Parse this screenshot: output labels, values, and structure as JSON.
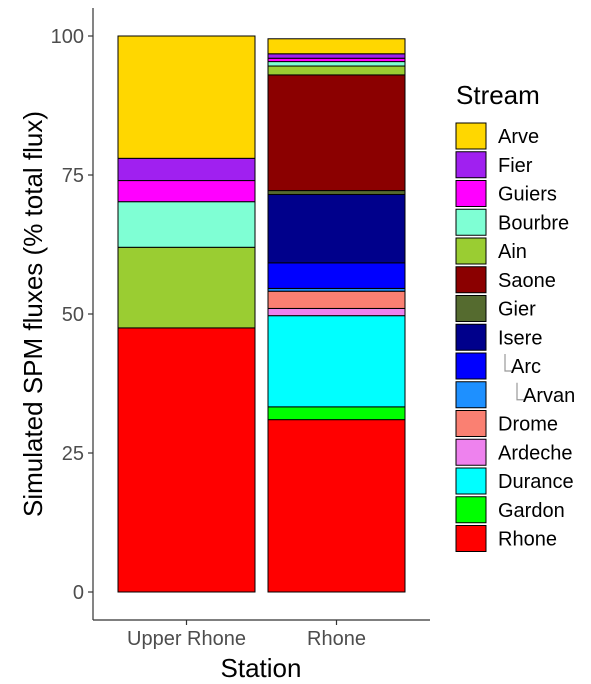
{
  "chart_data": {
    "type": "bar",
    "stacked": true,
    "title": "",
    "xlabel": "Station",
    "ylabel": "Simulated SPM fluxes (% total flux)",
    "ylim": [
      0,
      100
    ],
    "yticks": [
      0,
      25,
      50,
      75,
      100
    ],
    "grid": false,
    "legend_position": "right",
    "legend_title": "Stream",
    "categories": [
      "Upper Rhone",
      "Rhone"
    ],
    "series": [
      {
        "name": "Arve",
        "color": "#FFD700",
        "values": [
          22,
          2.7
        ]
      },
      {
        "name": "Fier",
        "color": "#A020F0",
        "values": [
          4,
          0.8
        ]
      },
      {
        "name": "Guiers",
        "color": "#FF00FF",
        "values": [
          3.8,
          0.6
        ]
      },
      {
        "name": "Bourbre",
        "color": "#7FFFD4",
        "values": [
          8.2,
          0.8
        ]
      },
      {
        "name": "Ain",
        "color": "#9ACD32",
        "values": [
          14.5,
          1.6
        ]
      },
      {
        "name": "Saone",
        "color": "#8B0000",
        "values": [
          0,
          20.8
        ]
      },
      {
        "name": "Gier",
        "color": "#556B2F",
        "values": [
          0,
          0.7
        ]
      },
      {
        "name": "Isere",
        "color": "#00008B",
        "values": [
          0,
          12.3
        ]
      },
      {
        "name": "Arc",
        "color": "#0000FF",
        "values": [
          0,
          4.6
        ]
      },
      {
        "name": "Arvan",
        "color": "#1E90FF",
        "values": [
          0,
          0.5
        ]
      },
      {
        "name": "Drome",
        "color": "#FA8072",
        "values": [
          0,
          3.1
        ]
      },
      {
        "name": "Ardeche",
        "color": "#EE82EE",
        "values": [
          0,
          1.3
        ]
      },
      {
        "name": "Durance",
        "color": "#00FFFF",
        "values": [
          0,
          16.4
        ]
      },
      {
        "name": "Gardon",
        "color": "#00FF00",
        "values": [
          0,
          2.3
        ]
      },
      {
        "name": "Rhone",
        "color": "#FF0000",
        "values": [
          47.5,
          31
        ]
      }
    ],
    "legend_items": [
      {
        "label": "Arve",
        "color": "#FFD700"
      },
      {
        "label": "Fier",
        "color": "#A020F0"
      },
      {
        "label": "Guiers",
        "color": "#FF00FF"
      },
      {
        "label": "Bourbre",
        "color": "#7FFFD4"
      },
      {
        "label": "Ain",
        "color": "#9ACD32"
      },
      {
        "label": "Saone",
        "color": "#8B0000"
      },
      {
        "label": "Gier",
        "color": "#556B2F"
      },
      {
        "label": "Isere",
        "color": "#00008B"
      },
      {
        "label": "Arc",
        "color": "#0000FF",
        "level": 1
      },
      {
        "label": "Arvan",
        "color": "#1E90FF",
        "level": 2
      },
      {
        "label": "Drome",
        "color": "#FA8072"
      },
      {
        "label": "Ardeche",
        "color": "#EE82EE"
      },
      {
        "label": "Durance",
        "color": "#00FFFF"
      },
      {
        "label": "Gardon",
        "color": "#00FF00"
      },
      {
        "label": "Rhone",
        "color": "#FF0000"
      }
    ]
  }
}
